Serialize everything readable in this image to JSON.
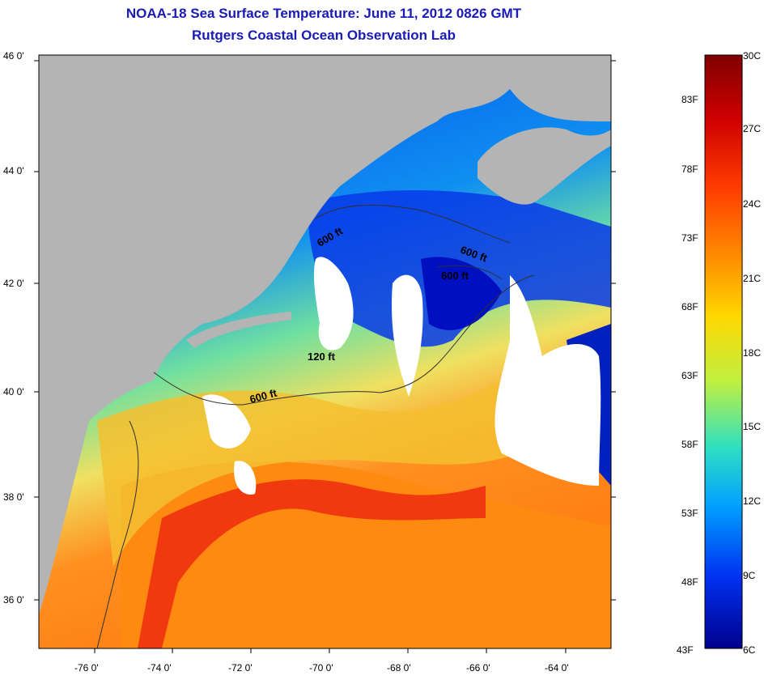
{
  "title": {
    "line1": "NOAA-18 Sea Surface Temperature:  June 11, 2012 0826 GMT",
    "line2": "Rutgers Coastal Ocean Observation Lab"
  },
  "axes": {
    "lat_labels": [
      "46 0'",
      "44 0'",
      "42 0'",
      "40 0'",
      "38 0'",
      "36 0'"
    ],
    "lon_labels": [
      "-76 0'",
      "-74 0'",
      "-72 0'",
      "-70 0'",
      "-68 0'",
      "-66 0'",
      "-64 0'"
    ]
  },
  "contours": {
    "label": "600 ft",
    "shallow_label": "120 ft"
  },
  "colorbar": {
    "celsius": [
      "30C",
      "27C",
      "24C",
      "21C",
      "18C",
      "15C",
      "12C",
      "9C",
      "6C"
    ],
    "fahrenheit": [
      "83F",
      "78F",
      "73F",
      "68F",
      "63F",
      "58F",
      "53F",
      "48F",
      "43F"
    ]
  },
  "colors": {
    "land": "#b4b4b4",
    "cloud": "#ffffff",
    "title": "#1a1ab4"
  }
}
